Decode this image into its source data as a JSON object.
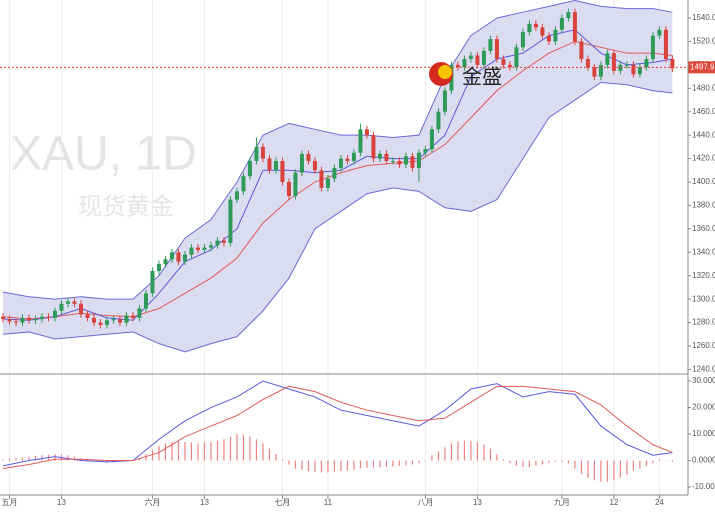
{
  "watermark": {
    "symbol": "XAU, 1D",
    "name": "现货黄金"
  },
  "logo": {
    "text": "金盛"
  },
  "chart_data": [
    {
      "type": "candlestick",
      "up_color": "#2e9a58",
      "down_color": "#d9423c",
      "xlim": [
        -0.46,
        105.4
      ],
      "ylim": [
        1237.8,
        1555.4
      ],
      "yticks": [
        {
          "value": 1540,
          "label": "1540.0"
        },
        {
          "value": 1520,
          "label": "1520.0"
        },
        {
          "value": 1500,
          "label": "1500.0"
        },
        {
          "value": 1480,
          "label": "1480.0"
        },
        {
          "value": 1460,
          "label": "1460.0"
        },
        {
          "value": 1440,
          "label": "1440.0"
        },
        {
          "value": 1420,
          "label": "1420.0"
        },
        {
          "value": 1400,
          "label": "1400.0"
        },
        {
          "value": 1380,
          "label": "1380.0"
        },
        {
          "value": 1360,
          "label": "1360.0"
        },
        {
          "value": 1340,
          "label": "1340.0"
        },
        {
          "value": 1320,
          "label": "1320.0"
        },
        {
          "value": 1300,
          "label": "1300.0"
        },
        {
          "value": 1280,
          "label": "1280.0"
        },
        {
          "value": 1260,
          "label": "1260.0"
        },
        {
          "value": 1240,
          "label": "1240.0"
        }
      ],
      "last_price": 1497.9,
      "last_color": "#e0483c",
      "open": [
        1285,
        1283,
        1281,
        1280,
        1284,
        1282,
        1283,
        1285,
        1284,
        1290,
        1296,
        1298,
        1296,
        1287,
        1284,
        1280,
        1278,
        1282,
        1283,
        1280,
        1286,
        1284,
        1292,
        1305,
        1324,
        1330,
        1334,
        1340,
        1332,
        1338,
        1344,
        1342,
        1344,
        1346,
        1350,
        1348,
        1385,
        1392,
        1405,
        1418,
        1430,
        1420,
        1410,
        1418,
        1400,
        1388,
        1408,
        1424,
        1418,
        1410,
        1395,
        1403,
        1412,
        1420,
        1418,
        1425,
        1445,
        1440,
        1420,
        1424,
        1418,
        1418,
        1415,
        1422,
        1412,
        1425,
        1428,
        1445,
        1460,
        1478,
        1500,
        1498,
        1505,
        1508,
        1500,
        1512,
        1522,
        1505,
        1500,
        1498,
        1515,
        1528,
        1535,
        1532,
        1525,
        1520,
        1530,
        1540,
        1545,
        1520,
        1505,
        1498,
        1490,
        1500,
        1510,
        1495,
        1500,
        1500,
        1492,
        1498,
        1505,
        1525,
        1530,
        1505
      ],
      "high": [
        1288,
        1286,
        1284,
        1287,
        1287,
        1286,
        1288,
        1288,
        1293,
        1299,
        1301,
        1301,
        1299,
        1290,
        1287,
        1283,
        1285,
        1286,
        1286,
        1289,
        1289,
        1295,
        1308,
        1327,
        1333,
        1337,
        1343,
        1343,
        1341,
        1347,
        1347,
        1347,
        1349,
        1353,
        1353,
        1388,
        1395,
        1408,
        1421,
        1438,
        1433,
        1423,
        1421,
        1421,
        1403,
        1411,
        1427,
        1427,
        1421,
        1413,
        1406,
        1415,
        1423,
        1423,
        1428,
        1450,
        1448,
        1443,
        1427,
        1427,
        1421,
        1421,
        1425,
        1425,
        1428,
        1431,
        1448,
        1463,
        1481,
        1503,
        1503,
        1508,
        1511,
        1511,
        1515,
        1525,
        1525,
        1508,
        1503,
        1518,
        1531,
        1538,
        1538,
        1535,
        1528,
        1533,
        1543,
        1548,
        1548,
        1523,
        1508,
        1501,
        1503,
        1513,
        1513,
        1503,
        1503,
        1503,
        1501,
        1508,
        1528,
        1533,
        1533,
        1508
      ],
      "low": [
        1280,
        1278,
        1277,
        1277,
        1279,
        1279,
        1280,
        1281,
        1281,
        1287,
        1293,
        1293,
        1284,
        1281,
        1277,
        1275,
        1275,
        1279,
        1277,
        1277,
        1281,
        1281,
        1289,
        1302,
        1321,
        1327,
        1331,
        1329,
        1329,
        1335,
        1339,
        1339,
        1341,
        1343,
        1345,
        1345,
        1382,
        1389,
        1402,
        1415,
        1417,
        1407,
        1407,
        1397,
        1385,
        1385,
        1405,
        1415,
        1407,
        1392,
        1392,
        1400,
        1409,
        1415,
        1415,
        1422,
        1437,
        1417,
        1417,
        1415,
        1415,
        1412,
        1412,
        1409,
        1400,
        1422,
        1425,
        1442,
        1457,
        1475,
        1495,
        1495,
        1502,
        1497,
        1497,
        1509,
        1502,
        1497,
        1495,
        1495,
        1512,
        1525,
        1529,
        1522,
        1517,
        1517,
        1527,
        1537,
        1517,
        1502,
        1495,
        1487,
        1487,
        1497,
        1492,
        1492,
        1497,
        1489,
        1489,
        1495,
        1502,
        1522,
        1502,
        1494
      ],
      "close": [
        1283,
        1281,
        1280,
        1284,
        1282,
        1283,
        1285,
        1284,
        1290,
        1296,
        1298,
        1296,
        1287,
        1284,
        1280,
        1278,
        1282,
        1283,
        1280,
        1286,
        1284,
        1292,
        1305,
        1324,
        1330,
        1334,
        1340,
        1332,
        1338,
        1344,
        1342,
        1344,
        1346,
        1350,
        1348,
        1385,
        1392,
        1405,
        1418,
        1430,
        1420,
        1410,
        1418,
        1400,
        1388,
        1408,
        1424,
        1418,
        1410,
        1395,
        1403,
        1412,
        1420,
        1418,
        1425,
        1445,
        1440,
        1420,
        1424,
        1418,
        1418,
        1415,
        1422,
        1412,
        1425,
        1428,
        1445,
        1460,
        1478,
        1500,
        1498,
        1505,
        1508,
        1500,
        1512,
        1522,
        1505,
        1500,
        1498,
        1515,
        1528,
        1535,
        1532,
        1525,
        1520,
        1530,
        1540,
        1545,
        1520,
        1505,
        1498,
        1490,
        1500,
        1510,
        1495,
        1500,
        1500,
        1492,
        1498,
        1505,
        1525,
        1530,
        1505,
        1497
      ],
      "band": {
        "color": "#6a6ad8",
        "fill": "#dcdcf0",
        "x": [
          0,
          4,
          8,
          12,
          16,
          20,
          24,
          28,
          32,
          36,
          40,
          44,
          48,
          52,
          56,
          60,
          64,
          68,
          72,
          76,
          80,
          84,
          88,
          92,
          96,
          100,
          103
        ],
        "upper": [
          1306,
          1302,
          1300,
          1302,
          1300,
          1300,
          1320,
          1352,
          1368,
          1400,
          1440,
          1450,
          1445,
          1440,
          1440,
          1438,
          1440,
          1490,
          1525,
          1540,
          1545,
          1550,
          1555,
          1550,
          1548,
          1548,
          1545
        ],
        "lower": [
          1270,
          1272,
          1266,
          1268,
          1270,
          1272,
          1262,
          1255,
          1262,
          1268,
          1290,
          1318,
          1360,
          1375,
          1390,
          1395,
          1392,
          1378,
          1375,
          1385,
          1420,
          1455,
          1470,
          1485,
          1483,
          1478,
          1476
        ]
      },
      "series": [
        {
          "color": "#e05a5a",
          "x": [
            0,
            4,
            8,
            12,
            16,
            20,
            24,
            28,
            32,
            36,
            40,
            44,
            48,
            52,
            56,
            60,
            64,
            68,
            72,
            76,
            80,
            84,
            88,
            92,
            96,
            100,
            103
          ],
          "values": [
            1285,
            1283,
            1285,
            1288,
            1286,
            1285,
            1292,
            1305,
            1318,
            1335,
            1365,
            1385,
            1400,
            1408,
            1414,
            1416,
            1418,
            1432,
            1455,
            1478,
            1495,
            1510,
            1520,
            1515,
            1510,
            1510,
            1508
          ]
        },
        {
          "color": "#5a5ae0",
          "x": [
            0,
            4,
            8,
            12,
            16,
            20,
            24,
            28,
            32,
            36,
            40,
            44,
            48,
            52,
            56,
            60,
            64,
            68,
            72,
            76,
            80,
            84,
            88,
            92,
            96,
            100,
            103
          ],
          "values": [
            1283,
            1282,
            1285,
            1292,
            1284,
            1282,
            1305,
            1332,
            1342,
            1360,
            1410,
            1410,
            1408,
            1410,
            1422,
            1420,
            1420,
            1440,
            1490,
            1505,
            1510,
            1525,
            1530,
            1510,
            1500,
            1502,
            1505
          ]
        }
      ]
    },
    {
      "type": "bar",
      "color": "#f08080",
      "xlim": [
        -0.46,
        105.4
      ],
      "ylim": [
        -13,
        31.9
      ],
      "yticks": [
        {
          "value": 30,
          "label": "30.000"
        },
        {
          "value": 20,
          "label": "20.000"
        },
        {
          "value": 10,
          "label": "10.000"
        },
        {
          "value": 0,
          "label": "0.0000"
        },
        {
          "value": -10,
          "label": "-10.000"
        }
      ],
      "xticks": [
        {
          "value": 1,
          "label": "五月"
        },
        {
          "value": 9,
          "label": "13"
        },
        {
          "value": 23,
          "label": "六月"
        },
        {
          "value": 31,
          "label": "13"
        },
        {
          "value": 43,
          "label": "七月"
        },
        {
          "value": 50,
          "label": "11"
        },
        {
          "value": 65,
          "label": "八月"
        },
        {
          "value": 73,
          "label": "13"
        },
        {
          "value": 86,
          "label": "九月"
        },
        {
          "value": 94,
          "label": "12"
        },
        {
          "value": 101,
          "label": "24"
        }
      ],
      "values": [
        0.5,
        0.8,
        1,
        1.2,
        1.5,
        1.8,
        2,
        2.2,
        2.4,
        2.2,
        2,
        1.5,
        1,
        0.5,
        0,
        -0.5,
        -0.8,
        -0.8,
        -0.5,
        -0.2,
        0,
        1,
        2.5,
        4,
        5.5,
        6.5,
        7,
        7.2,
        7,
        6.8,
        6.5,
        6.8,
        7,
        7.5,
        8,
        9,
        10,
        9.8,
        9,
        8,
        6.5,
        4.5,
        2.5,
        0.5,
        -1.5,
        -3,
        -3.5,
        -4,
        -4.2,
        -4.5,
        -4.5,
        -4.2,
        -4,
        -3.8,
        -3.5,
        -3,
        -2.8,
        -2.6,
        -2.5,
        -2.4,
        -2.2,
        -2,
        -1.8,
        -1.5,
        -1,
        0,
        2,
        3.5,
        5,
        6.5,
        7.2,
        7.5,
        7.5,
        7,
        6,
        4.5,
        2.5,
        0.5,
        -1,
        -2,
        -2.5,
        -2.5,
        -2,
        -1.5,
        -1,
        -0.5,
        -0.5,
        -1,
        -3,
        -5,
        -6.5,
        -7.5,
        -8,
        -8,
        -7.5,
        -6.5,
        -5.5,
        -4,
        -3,
        -2,
        -1,
        0.5,
        0.2,
        -0.5
      ],
      "series": [
        {
          "color": "#5a5ae0",
          "x": [
            0,
            4,
            8,
            12,
            16,
            20,
            24,
            28,
            32,
            36,
            40,
            44,
            48,
            52,
            56,
            60,
            64,
            68,
            72,
            76,
            80,
            84,
            88,
            92,
            96,
            100,
            103
          ],
          "values": [
            -2,
            0,
            1.5,
            0,
            -0.5,
            0,
            8,
            15,
            20,
            24,
            30,
            27,
            24,
            19,
            17,
            15,
            13,
            19,
            27,
            29,
            24,
            26,
            25,
            13,
            6,
            2,
            3
          ]
        },
        {
          "color": "#e05a5a",
          "x": [
            0,
            4,
            8,
            12,
            16,
            20,
            24,
            28,
            32,
            36,
            40,
            44,
            48,
            52,
            56,
            60,
            64,
            68,
            72,
            76,
            80,
            84,
            88,
            92,
            96,
            100,
            103
          ],
          "values": [
            -3,
            -1.5,
            0.5,
            0.5,
            0,
            0,
            3,
            9,
            13,
            17,
            23,
            28,
            26,
            22,
            19,
            17,
            15,
            16,
            22,
            28,
            28,
            27,
            26,
            21,
            13,
            6,
            3
          ]
        }
      ]
    }
  ]
}
